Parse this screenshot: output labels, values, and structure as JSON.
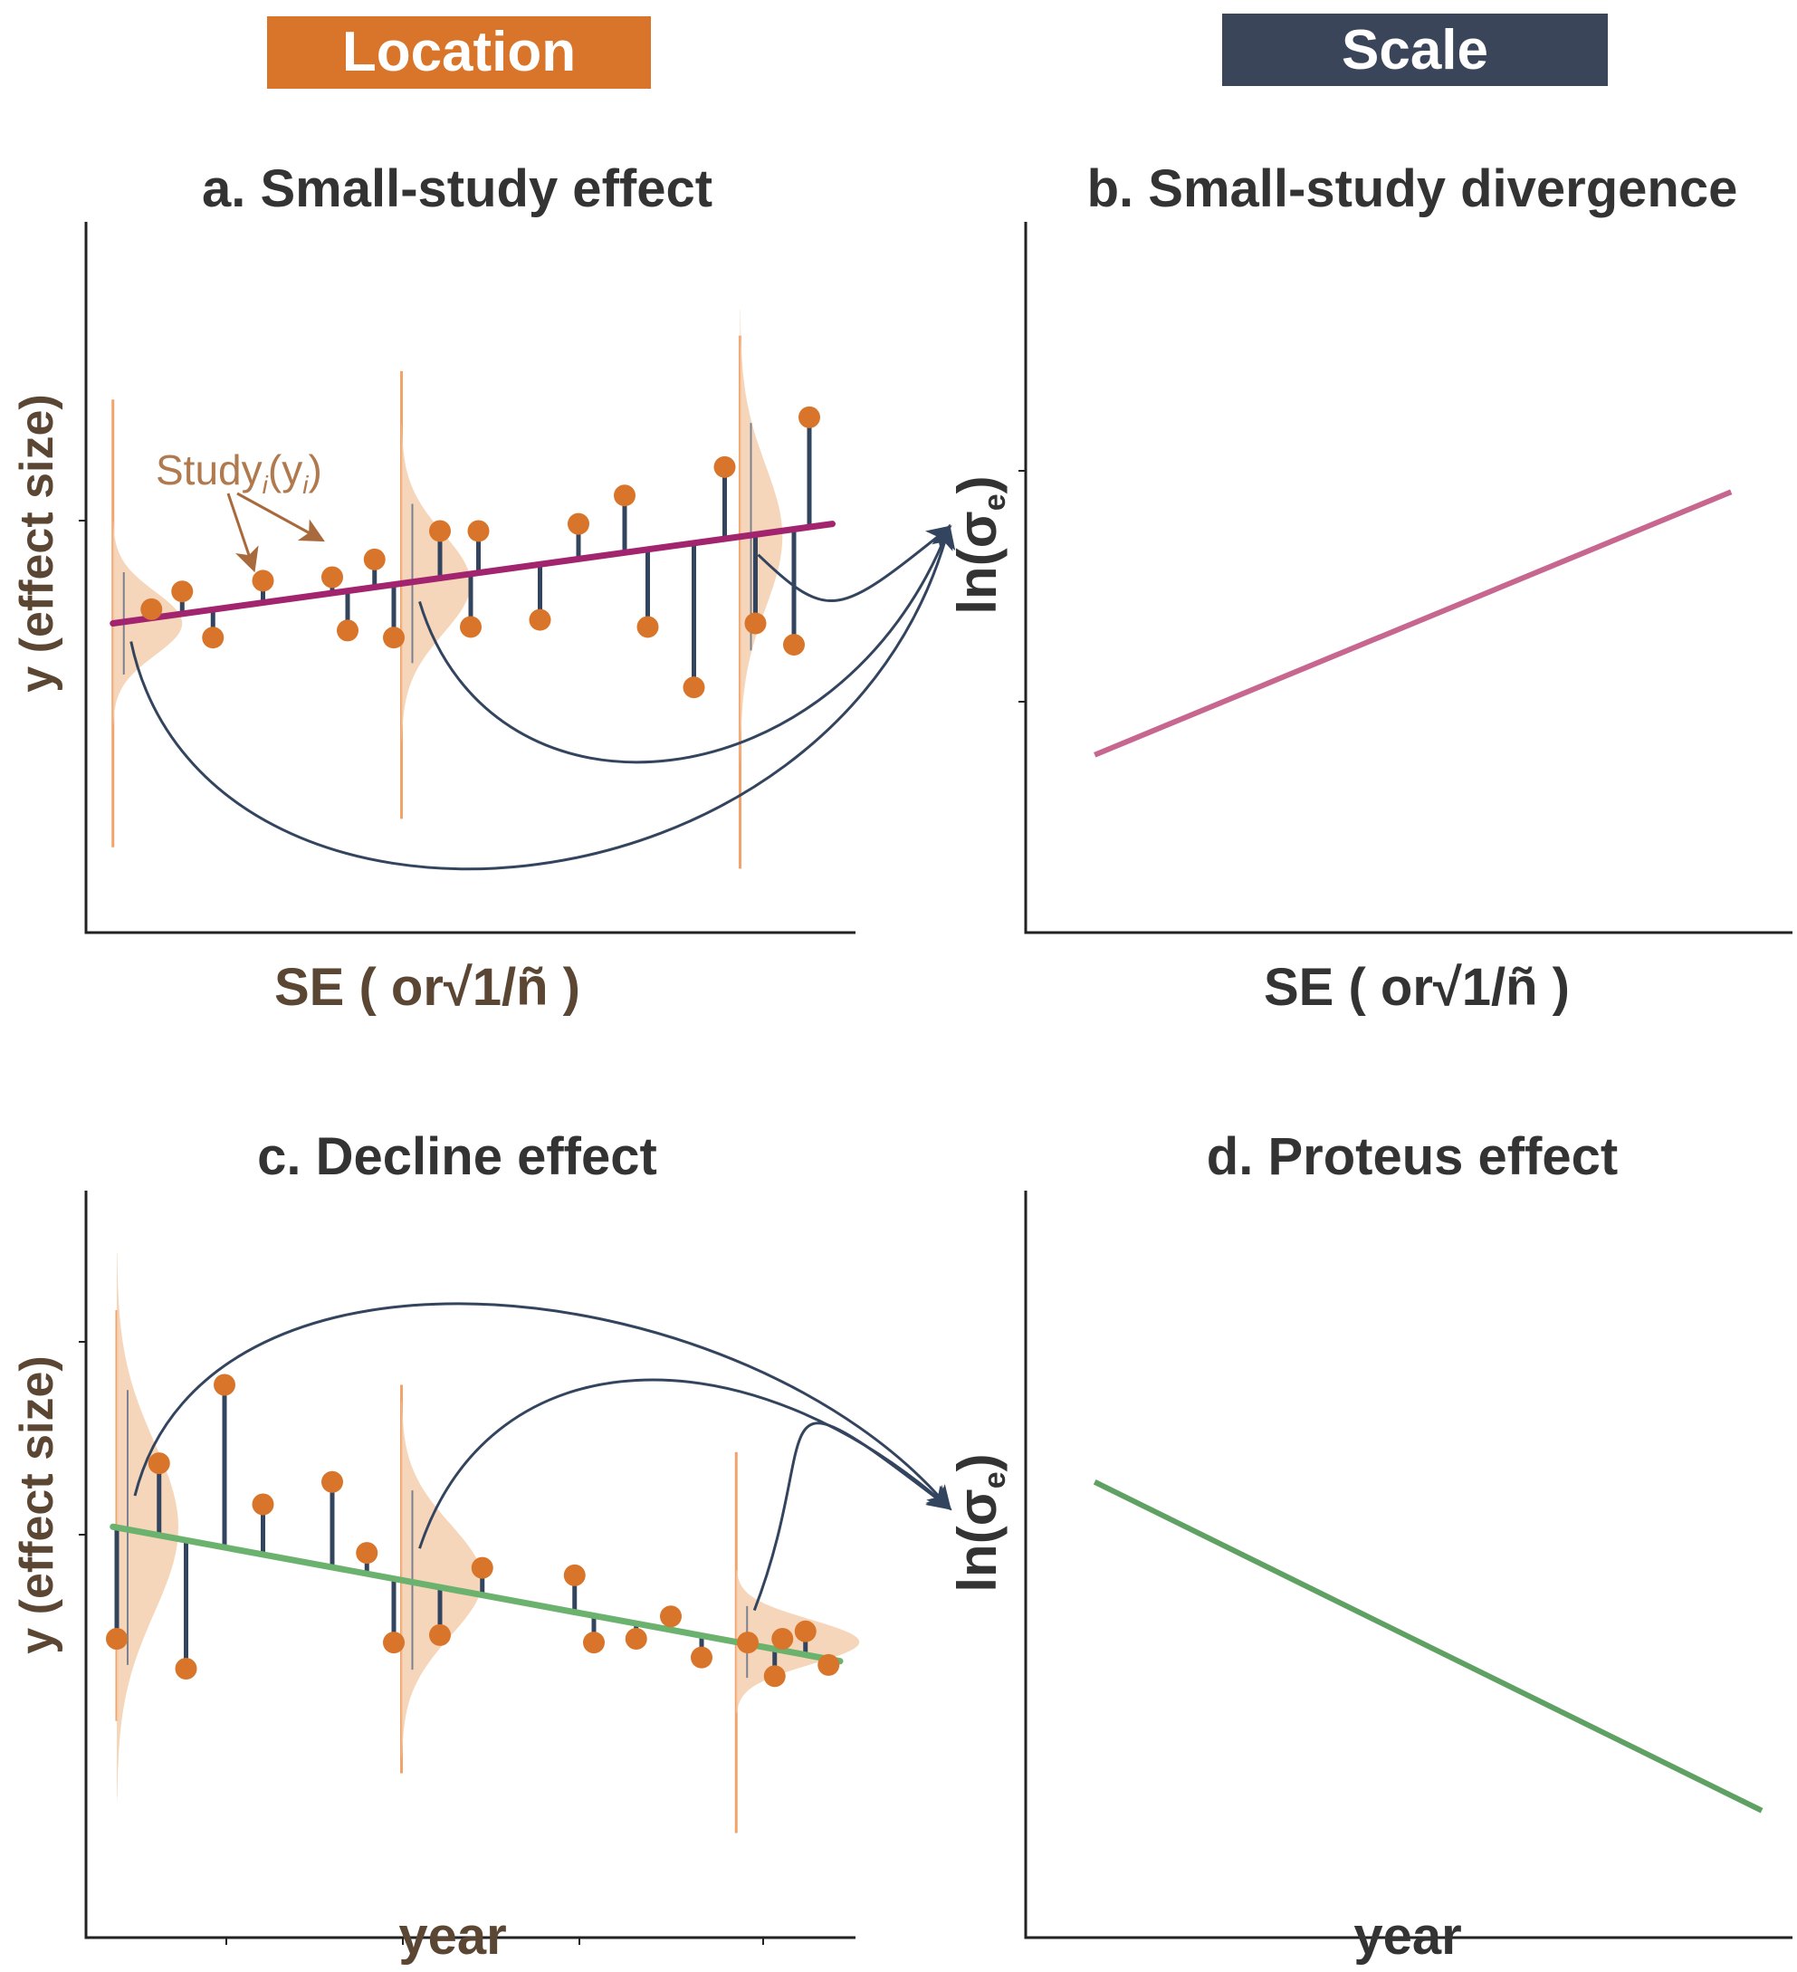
{
  "headers": {
    "location": {
      "label": "Location",
      "color": "#d9752a"
    },
    "scale": {
      "label": "Scale",
      "color": "#3b455a"
    }
  },
  "chart_data": [
    {
      "id": "a",
      "type": "scatter",
      "title": "a. Small-study effect",
      "xlabel": "SE ( or√1/ñ )",
      "ylabel": "y (effect size)",
      "annotation": {
        "main": "Study",
        "sub": "i",
        "paren": "(y",
        "psub": "i",
        "close": ")"
      },
      "xlim": [
        0,
        10
      ],
      "ylim": [
        0,
        10
      ],
      "trend": {
        "x": [
          0.35,
          9.7
        ],
        "y": [
          4.35,
          5.75
        ],
        "color": "#a3246e"
      },
      "points": [
        {
          "x": 0.85,
          "y": 4.55
        },
        {
          "x": 1.25,
          "y": 4.8
        },
        {
          "x": 1.65,
          "y": 4.15
        },
        {
          "x": 2.3,
          "y": 4.95
        },
        {
          "x": 3.2,
          "y": 5.0
        },
        {
          "x": 3.4,
          "y": 4.25
        },
        {
          "x": 3.75,
          "y": 5.25
        },
        {
          "x": 4.0,
          "y": 4.15
        },
        {
          "x": 4.6,
          "y": 5.65
        },
        {
          "x": 5.0,
          "y": 4.3
        },
        {
          "x": 5.1,
          "y": 5.65
        },
        {
          "x": 5.9,
          "y": 4.4
        },
        {
          "x": 6.4,
          "y": 5.75
        },
        {
          "x": 7.0,
          "y": 6.15
        },
        {
          "x": 7.3,
          "y": 4.3
        },
        {
          "x": 7.9,
          "y": 3.45
        },
        {
          "x": 8.3,
          "y": 6.55
        },
        {
          "x": 8.7,
          "y": 4.35
        },
        {
          "x": 9.2,
          "y": 4.05
        },
        {
          "x": 9.4,
          "y": 7.25
        }
      ],
      "distributions": [
        {
          "x": 0.35,
          "peak": 0.9,
          "spread": 0.45,
          "orient_range": [
            1.2,
            7.5
          ]
        },
        {
          "x": 4.1,
          "peak": 0.9,
          "spread": 0.7,
          "orient_range": [
            1.6,
            7.9
          ]
        },
        {
          "x": 8.5,
          "peak": 0.55,
          "spread": 1.0,
          "orient_range": [
            0.9,
            8.4
          ]
        }
      ],
      "arrows_to": "ln(σe) axis"
    },
    {
      "id": "b",
      "type": "line",
      "title": "b. Small-study divergence",
      "xlabel": "SE ( or√1/ñ )",
      "ylabel": {
        "main": "ln(σ",
        "sub": "e",
        "close": ")"
      },
      "xlim": [
        0,
        10
      ],
      "ylim": [
        0,
        10
      ],
      "line": {
        "x": [
          0.9,
          9.2
        ],
        "y": [
          2.5,
          6.2
        ],
        "color": "#c7668f"
      }
    },
    {
      "id": "c",
      "type": "scatter",
      "title": "c. Decline effect",
      "xlabel": "year",
      "ylabel": "y (effect size)",
      "xlim": [
        0,
        10
      ],
      "ylim": [
        0,
        10
      ],
      "trend": {
        "x": [
          0.35,
          9.8
        ],
        "y": [
          5.5,
          3.7
        ],
        "color": "#6ab26e"
      },
      "points": [
        {
          "x": 0.4,
          "y": 4.0
        },
        {
          "x": 0.95,
          "y": 6.35
        },
        {
          "x": 1.3,
          "y": 3.6
        },
        {
          "x": 1.8,
          "y": 7.4
        },
        {
          "x": 2.3,
          "y": 5.8
        },
        {
          "x": 3.2,
          "y": 6.1
        },
        {
          "x": 3.65,
          "y": 5.15
        },
        {
          "x": 4.0,
          "y": 3.95
        },
        {
          "x": 4.6,
          "y": 4.05
        },
        {
          "x": 5.15,
          "y": 4.95
        },
        {
          "x": 6.35,
          "y": 4.85
        },
        {
          "x": 6.6,
          "y": 3.95
        },
        {
          "x": 7.15,
          "y": 4.0
        },
        {
          "x": 7.6,
          "y": 4.3
        },
        {
          "x": 8.0,
          "y": 3.75
        },
        {
          "x": 8.6,
          "y": 3.95
        },
        {
          "x": 8.95,
          "y": 3.5
        },
        {
          "x": 9.05,
          "y": 4.0
        },
        {
          "x": 9.35,
          "y": 4.1
        },
        {
          "x": 9.65,
          "y": 3.65
        }
      ],
      "distributions": [
        {
          "x": 0.4,
          "peak": 0.8,
          "spread": 1.15,
          "orient_range": [
            2.9,
            8.4
          ]
        },
        {
          "x": 4.1,
          "peak": 1.05,
          "spread": 0.75,
          "orient_range": [
            2.2,
            7.4
          ]
        },
        {
          "x": 8.45,
          "peak": 1.6,
          "spread": 0.3,
          "orient_range": [
            1.4,
            6.5
          ]
        }
      ],
      "arrows_to": "ln(σe) axis"
    },
    {
      "id": "d",
      "type": "line",
      "title": "d. Proteus effect",
      "xlabel": "year",
      "ylabel": {
        "main": "ln(σ",
        "sub": "e",
        "close": ")"
      },
      "xlim": [
        0,
        10
      ],
      "ylim": [
        0,
        10
      ],
      "line": {
        "x": [
          0.9,
          9.6
        ],
        "y": [
          6.1,
          1.7
        ],
        "color": "#5fa063"
      }
    }
  ]
}
